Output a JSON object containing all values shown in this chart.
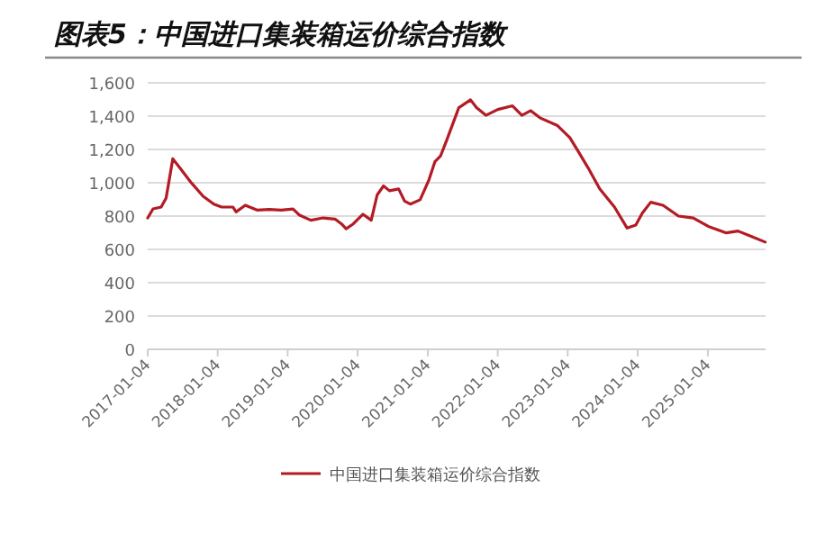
{
  "chart_data": {
    "type": "line",
    "title": "图表5：中国进口集装箱运价综合指数",
    "x": [
      "2017-01-04",
      "2017-02-01",
      "2017-03-15",
      "2017-04-10",
      "2017-05-15",
      "2017-06-20",
      "2017-08-20",
      "2017-10-20",
      "2017-12-15",
      "2018-01-25",
      "2018-03-25",
      "2018-04-10",
      "2018-05-28",
      "2018-07-28",
      "2018-09-30",
      "2018-12-01",
      "2019-02-01",
      "2019-03-05",
      "2019-05-05",
      "2019-07-08",
      "2019-09-08",
      "2019-10-12",
      "2019-11-05",
      "2019-12-12",
      "2020-02-01",
      "2020-03-15",
      "2020-04-15",
      "2020-05-18",
      "2020-06-18",
      "2020-08-05",
      "2020-09-05",
      "2020-10-05",
      "2020-11-25",
      "2021-01-10",
      "2021-02-10",
      "2021-03-12",
      "2021-04-12",
      "2021-06-15",
      "2021-08-15",
      "2021-09-15",
      "2021-11-03",
      "2022-01-04",
      "2022-03-22",
      "2022-05-10",
      "2022-06-25",
      "2022-08-12",
      "2022-11-12",
      "2023-01-15",
      "2023-03-04",
      "2023-04-20",
      "2023-06-20",
      "2023-09-05",
      "2023-11-10",
      "2023-12-25",
      "2024-01-28",
      "2024-03-12",
      "2024-05-15",
      "2024-08-04",
      "2024-10-20",
      "2025-01-06",
      "2025-04-10",
      "2025-06-10",
      "2025-08-12",
      "2025-10-30"
    ],
    "series": [
      {
        "name": "中国进口集装箱运价综合指数",
        "color": "#b31b25",
        "values": [
          789,
          843,
          854,
          908,
          1144,
          1090,
          999,
          919,
          872,
          854,
          854,
          825,
          865,
          836,
          840,
          836,
          843,
          807,
          775,
          789,
          782,
          753,
          724,
          753,
          811,
          775,
          927,
          981,
          952,
          963,
          890,
          872,
          898,
          1017,
          1126,
          1162,
          1253,
          1451,
          1498,
          1451,
          1405,
          1440,
          1462,
          1405,
          1433,
          1390,
          1343,
          1271,
          1180,
          1090,
          963,
          854,
          728,
          746,
          818,
          883,
          865,
          800,
          789,
          738,
          699,
          710,
          681,
          644
        ]
      }
    ],
    "xlim": [
      "2017-01-04",
      "2025-11-01"
    ],
    "xticks": [
      {
        "value": "2017-01-04",
        "label": "2017-01-04"
      },
      {
        "value": "2018-01-04",
        "label": "2018-01-04"
      },
      {
        "value": "2019-01-04",
        "label": "2019-01-04"
      },
      {
        "value": "2020-01-04",
        "label": "2020-01-04"
      },
      {
        "value": "2021-01-04",
        "label": "2021-01-04"
      },
      {
        "value": "2022-01-04",
        "label": "2022-01-04"
      },
      {
        "value": "2023-01-04",
        "label": "2023-01-04"
      },
      {
        "value": "2024-01-04",
        "label": "2024-01-04"
      },
      {
        "value": "2025-01-04",
        "label": "2025-01-04"
      }
    ],
    "ylim": [
      0,
      1600
    ],
    "yticks": [
      0,
      {
        "value": 200,
        "label": "200"
      },
      {
        "value": 400,
        "label": "400"
      },
      {
        "value": 600,
        "label": "600"
      },
      {
        "value": 800,
        "label": "800"
      },
      {
        "value": 1000,
        "label": "1,000"
      },
      {
        "value": 1200,
        "label": "1,200"
      },
      {
        "value": 1400,
        "label": "1,400"
      },
      {
        "value": 1600,
        "label": "1,600"
      }
    ],
    "grid": "y",
    "legend": "bottom",
    "marker": "none",
    "line_style": "solid"
  }
}
